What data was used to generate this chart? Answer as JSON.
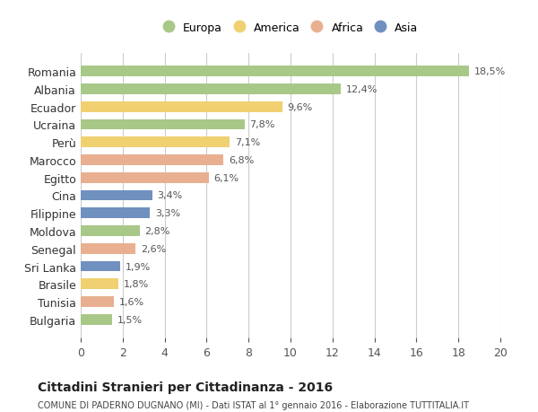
{
  "countries": [
    "Romania",
    "Albania",
    "Ecuador",
    "Ucraina",
    "Perù",
    "Marocco",
    "Egitto",
    "Cina",
    "Filippine",
    "Moldova",
    "Senegal",
    "Sri Lanka",
    "Brasile",
    "Tunisia",
    "Bulgaria"
  ],
  "values": [
    18.5,
    12.4,
    9.6,
    7.8,
    7.1,
    6.8,
    6.1,
    3.4,
    3.3,
    2.8,
    2.6,
    1.9,
    1.8,
    1.6,
    1.5
  ],
  "labels": [
    "18,5%",
    "12,4%",
    "9,6%",
    "7,8%",
    "7,1%",
    "6,8%",
    "6,1%",
    "3,4%",
    "3,3%",
    "2,8%",
    "2,6%",
    "1,9%",
    "1,8%",
    "1,6%",
    "1,5%"
  ],
  "regions": [
    "Europa",
    "Europa",
    "America",
    "Europa",
    "America",
    "Africa",
    "Africa",
    "Asia",
    "Asia",
    "Europa",
    "Africa",
    "Asia",
    "America",
    "Africa",
    "Europa"
  ],
  "colors": {
    "Europa": "#a8c888",
    "America": "#f0d070",
    "Africa": "#e8b090",
    "Asia": "#7090c0"
  },
  "legend_entries": [
    "Europa",
    "America",
    "Africa",
    "Asia"
  ],
  "title": "Cittadini Stranieri per Cittadinanza - 2016",
  "subtitle": "COMUNE DI PADERNO DUGNANO (MI) - Dati ISTAT al 1° gennaio 2016 - Elaborazione TUTTITALIA.IT",
  "xlim": [
    0,
    20
  ],
  "xticks": [
    0,
    2,
    4,
    6,
    8,
    10,
    12,
    14,
    16,
    18,
    20
  ],
  "background_color": "#ffffff",
  "grid_color": "#cccccc"
}
